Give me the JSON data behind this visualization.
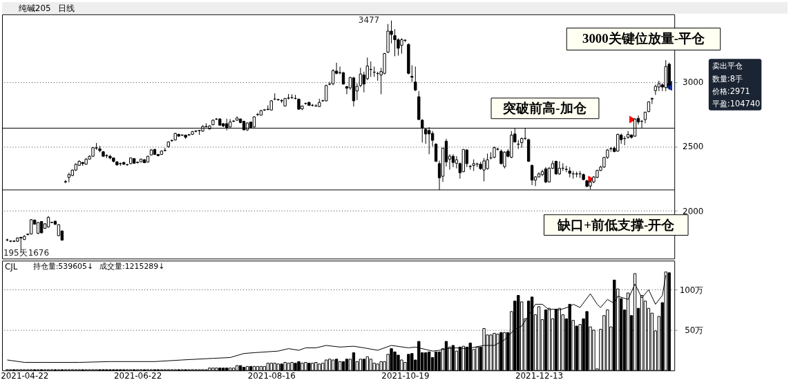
{
  "chart_data": [
    {
      "type": "candlestick",
      "title": "纯碱205",
      "subtitle": "日线",
      "color": "#000000",
      "categories": [
        null,
        null,
        null,
        null,
        null,
        "2021-04-22",
        null,
        null,
        null,
        null,
        null,
        null,
        null,
        null,
        null,
        null,
        null,
        null,
        null,
        null,
        null,
        null,
        null,
        null,
        null,
        null,
        null,
        null,
        null,
        null,
        null,
        null,
        null,
        null,
        null,
        null,
        null,
        null,
        "2021-06-22",
        null,
        null,
        null,
        null,
        null,
        null,
        null,
        null,
        null,
        null,
        null,
        null,
        null,
        null,
        null,
        null,
        null,
        null,
        null,
        null,
        null,
        null,
        null,
        null,
        null,
        null,
        null,
        null,
        null,
        null,
        null,
        null,
        null,
        null,
        null,
        null,
        null,
        null,
        "2021-08-16",
        null,
        null,
        null,
        null,
        null,
        null,
        null,
        null,
        null,
        null,
        null,
        null,
        null,
        null,
        null,
        null,
        null,
        null,
        null,
        null,
        null,
        null,
        null,
        null,
        null,
        null,
        null,
        null,
        null,
        null,
        null,
        null,
        null,
        null,
        null,
        null,
        null,
        null,
        "2021-10-19",
        null,
        null,
        null,
        null,
        null,
        null,
        null,
        null,
        null,
        null,
        null,
        null,
        null,
        null,
        null,
        null,
        null,
        null,
        null,
        null,
        null,
        null,
        null,
        null,
        null,
        null,
        null,
        null,
        null,
        null,
        null,
        null,
        null,
        null,
        null,
        null,
        null,
        null,
        "2021-12-13",
        null,
        null,
        null,
        null,
        null,
        null,
        null,
        null,
        null,
        null,
        null,
        null,
        null,
        null,
        null,
        null,
        null,
        null,
        null,
        null,
        null,
        null,
        null,
        null,
        null,
        null,
        null,
        null,
        null,
        null,
        null,
        null,
        null,
        null,
        null,
        null,
        null,
        null
      ],
      "ohlc": [
        [
          1775,
          1785,
          1765,
          1775
        ],
        [
          1765,
          1772,
          1758,
          1766
        ],
        [
          1766,
          1772,
          1758,
          1765
        ],
        [
          1765,
          1795,
          1760,
          1790
        ],
        [
          1790,
          1800,
          1676,
          1795
        ],
        [
          1778,
          1812,
          1775,
          1803
        ],
        [
          1817,
          1825,
          1810,
          1820
        ],
        [
          1821,
          1937,
          1818,
          1932
        ],
        [
          1929,
          1934,
          1895,
          1897
        ],
        [
          1826,
          1915,
          1820,
          1910
        ],
        [
          1918,
          1920,
          1826,
          1830
        ],
        [
          1865,
          1905,
          1860,
          1900
        ],
        [
          1876,
          1960,
          1870,
          1950
        ],
        [
          1910,
          1915,
          1905,
          1912
        ],
        [
          1920,
          1925,
          1890,
          1897
        ],
        [
          1808,
          1897,
          1805,
          1893
        ],
        [
          1844,
          1850,
          1770,
          1773
        ],
        [
          2225,
          2240,
          2215,
          2228
        ],
        [
          2260,
          2296,
          2222,
          2282
        ],
        [
          2275,
          2322,
          2270,
          2317
        ],
        [
          2317,
          2370,
          2310,
          2361
        ],
        [
          2354,
          2392,
          2350,
          2385
        ],
        [
          2376,
          2380,
          2350,
          2367
        ],
        [
          2363,
          2410,
          2358,
          2402
        ],
        [
          2402,
          2432,
          2398,
          2424
        ],
        [
          2424,
          2495,
          2420,
          2491
        ],
        [
          2487,
          2527,
          2475,
          2490
        ],
        [
          2482,
          2505,
          2455,
          2468
        ],
        [
          2459,
          2465,
          2420,
          2424
        ],
        [
          2430,
          2440,
          2410,
          2428
        ],
        [
          2424,
          2435,
          2400,
          2411
        ],
        [
          2411,
          2415,
          2375,
          2385
        ],
        [
          2381,
          2385,
          2350,
          2358
        ],
        [
          2368,
          2375,
          2350,
          2366
        ],
        [
          2376,
          2382,
          2355,
          2363
        ],
        [
          2358,
          2365,
          2350,
          2359
        ],
        [
          2367,
          2415,
          2362,
          2411
        ],
        [
          2406,
          2410,
          2365,
          2370
        ],
        [
          2375,
          2385,
          2368,
          2377
        ],
        [
          2381,
          2406,
          2376,
          2402
        ],
        [
          2397,
          2402,
          2370,
          2374
        ],
        [
          2379,
          2428,
          2375,
          2424
        ],
        [
          2434,
          2480,
          2430,
          2473
        ],
        [
          2477,
          2482,
          2434,
          2438
        ],
        [
          2438,
          2442,
          2424,
          2429
        ],
        [
          2438,
          2470,
          2434,
          2464
        ],
        [
          2468,
          2490,
          2462,
          2470
        ],
        [
          2500,
          2540,
          2490,
          2535
        ],
        [
          2544,
          2555,
          2538,
          2546
        ],
        [
          2551,
          2606,
          2546,
          2601
        ],
        [
          2594,
          2600,
          2575,
          2580
        ],
        [
          2588,
          2595,
          2580,
          2589
        ],
        [
          2588,
          2592,
          2560,
          2571
        ],
        [
          2590,
          2598,
          2582,
          2591
        ],
        [
          2594,
          2620,
          2590,
          2615
        ],
        [
          2618,
          2626,
          2610,
          2620
        ],
        [
          2623,
          2628,
          2590,
          2625
        ],
        [
          2619,
          2665,
          2615,
          2656
        ],
        [
          2654,
          2680,
          2648,
          2655
        ],
        [
          2636,
          2665,
          2632,
          2659
        ],
        [
          2668,
          2710,
          2665,
          2704
        ],
        [
          2712,
          2720,
          2705,
          2713
        ],
        [
          2713,
          2720,
          2660,
          2665
        ],
        [
          2677,
          2682,
          2650,
          2659
        ],
        [
          2677,
          2715,
          2625,
          2642
        ],
        [
          2651,
          2712,
          2648,
          2690
        ],
        [
          2695,
          2705,
          2690,
          2697
        ],
        [
          2704,
          2733,
          2700,
          2721
        ],
        [
          2713,
          2718,
          2680,
          2686
        ],
        [
          2695,
          2700,
          2625,
          2629
        ],
        [
          2629,
          2686,
          2620,
          2682
        ],
        [
          2690,
          2693,
          2643,
          2647
        ],
        [
          2651,
          2735,
          2648,
          2730
        ],
        [
          2748,
          2760,
          2735,
          2749
        ],
        [
          2743,
          2785,
          2740,
          2778
        ],
        [
          2783,
          2790,
          2776,
          2784
        ],
        [
          2787,
          2820,
          2780,
          2789
        ],
        [
          2783,
          2860,
          2780,
          2854
        ],
        [
          2867,
          2913,
          2860,
          2868
        ],
        [
          2863,
          2870,
          2855,
          2864
        ],
        [
          2856,
          2867,
          2837,
          2854
        ],
        [
          2814,
          2877,
          2810,
          2872
        ],
        [
          2875,
          2907,
          2865,
          2876
        ],
        [
          2878,
          2905,
          2870,
          2879
        ],
        [
          2873,
          2900,
          2865,
          2872
        ],
        [
          2867,
          2872,
          2785,
          2789
        ],
        [
          2792,
          2818,
          2782,
          2814
        ],
        [
          2833,
          2840,
          2825,
          2834
        ],
        [
          2842,
          2847,
          2815,
          2819
        ],
        [
          2819,
          2830,
          2810,
          2820
        ],
        [
          2814,
          2828,
          2808,
          2815
        ],
        [
          2810,
          2870,
          2806,
          2842
        ],
        [
          2854,
          2862,
          2848,
          2855
        ],
        [
          2854,
          2980,
          2850,
          2973
        ],
        [
          2983,
          3000,
          2975,
          2984
        ],
        [
          2987,
          3100,
          2975,
          3088
        ],
        [
          3085,
          3150,
          3060,
          3067
        ],
        [
          3072,
          3120,
          3060,
          3073
        ],
        [
          3072,
          3080,
          2980,
          2984
        ],
        [
          2964,
          2970,
          2905,
          2952
        ],
        [
          2955,
          3040,
          2940,
          3035
        ],
        [
          3032,
          3040,
          2810,
          2854
        ],
        [
          2931,
          2990,
          2860,
          2966
        ],
        [
          2973,
          3110,
          2960,
          3062
        ],
        [
          3055,
          3080,
          2920,
          2984
        ],
        [
          3026,
          3190,
          3015,
          3124
        ],
        [
          3097,
          3160,
          3040,
          3098
        ],
        [
          3076,
          3120,
          3040,
          3077
        ],
        [
          3065,
          3080,
          3010,
          3066
        ],
        [
          3055,
          3110,
          2905,
          3081
        ],
        [
          3067,
          3226,
          3060,
          3221
        ],
        [
          3232,
          3450,
          3225,
          3395
        ],
        [
          3395,
          3477,
          3300,
          3369
        ],
        [
          3360,
          3410,
          3200,
          3328
        ],
        [
          3328,
          3340,
          3205,
          3262
        ],
        [
          3285,
          3340,
          3220,
          3328
        ],
        [
          3323,
          3330,
          3310,
          3325
        ],
        [
          3292,
          3300,
          3060,
          3067
        ],
        [
          3044,
          3130,
          3000,
          3037
        ],
        [
          3000,
          3120,
          2930,
          2938
        ],
        [
          2886,
          2930,
          2705,
          2709
        ],
        [
          2704,
          2712,
          2530,
          2642
        ],
        [
          2633,
          2640,
          2520,
          2597
        ],
        [
          2624,
          2650,
          2440,
          2597
        ],
        [
          2601,
          2620,
          2500,
          2548
        ],
        [
          2518,
          2525,
          2380,
          2385
        ],
        [
          2367,
          2390,
          2163,
          2257
        ],
        [
          2269,
          2490,
          2225,
          2487
        ],
        [
          2541,
          2560,
          2345,
          2381
        ],
        [
          2402,
          2440,
          2320,
          2425
        ],
        [
          2424,
          2440,
          2340,
          2376
        ],
        [
          2370,
          2425,
          2330,
          2397
        ],
        [
          2367,
          2376,
          2250,
          2296
        ],
        [
          2305,
          2480,
          2300,
          2477
        ],
        [
          2473,
          2478,
          2340,
          2367
        ],
        [
          2346,
          2355,
          2320,
          2345
        ],
        [
          2353,
          2400,
          2310,
          2367
        ],
        [
          2363,
          2375,
          2340,
          2364
        ],
        [
          2363,
          2380,
          2320,
          2328
        ],
        [
          2317,
          2410,
          2230,
          2388
        ],
        [
          2328,
          2445,
          2320,
          2397
        ],
        [
          2411,
          2455,
          2400,
          2412
        ],
        [
          2416,
          2500,
          2410,
          2491
        ],
        [
          2478,
          2490,
          2470,
          2479
        ],
        [
          2463,
          2477,
          2360,
          2367
        ],
        [
          2344,
          2462,
          2330,
          2456
        ],
        [
          2463,
          2480,
          2415,
          2424
        ],
        [
          2416,
          2620,
          2410,
          2588
        ],
        [
          2597,
          2640,
          2530,
          2535
        ],
        [
          2518,
          2550,
          2480,
          2517
        ],
        [
          2530,
          2570,
          2490,
          2562
        ],
        [
          2562,
          2640,
          2550,
          2563
        ],
        [
          2553,
          2560,
          2380,
          2385
        ],
        [
          2353,
          2360,
          2200,
          2239
        ],
        [
          2239,
          2270,
          2193,
          2264
        ],
        [
          2264,
          2300,
          2260,
          2287
        ],
        [
          2282,
          2320,
          2270,
          2305
        ],
        [
          2326,
          2340,
          2215,
          2225
        ],
        [
          2225,
          2340,
          2220,
          2331
        ],
        [
          2331,
          2390,
          2325,
          2367
        ],
        [
          2385,
          2390,
          2280,
          2287
        ],
        [
          2287,
          2385,
          2280,
          2331
        ],
        [
          2331,
          2370,
          2310,
          2332
        ],
        [
          2323,
          2350,
          2300,
          2322
        ],
        [
          2310,
          2340,
          2260,
          2292
        ],
        [
          2287,
          2310,
          2250,
          2288
        ],
        [
          2287,
          2305,
          2260,
          2286
        ],
        [
          2287,
          2310,
          2255,
          2288
        ],
        [
          2282,
          2290,
          2238,
          2243
        ],
        [
          2234,
          2240,
          2185,
          2190
        ],
        [
          2193,
          2232,
          2167,
          2225
        ],
        [
          2225,
          2270,
          2215,
          2264
        ],
        [
          2260,
          2320,
          2255,
          2314
        ],
        [
          2314,
          2350,
          2310,
          2340
        ],
        [
          2340,
          2420,
          2335,
          2415
        ],
        [
          2415,
          2480,
          2405,
          2473
        ],
        [
          2482,
          2495,
          2460,
          2484
        ],
        [
          2487,
          2500,
          2455,
          2461
        ],
        [
          2464,
          2600,
          2460,
          2594
        ],
        [
          2588,
          2600,
          2520,
          2553
        ],
        [
          2562,
          2580,
          2510,
          2561
        ],
        [
          2571,
          2620,
          2560,
          2594
        ],
        [
          2588,
          2595,
          2560,
          2571
        ],
        [
          2580,
          2720,
          2575,
          2713
        ],
        [
          2718,
          2740,
          2670,
          2690
        ],
        [
          2695,
          2705,
          2640,
          2696
        ],
        [
          2709,
          2770,
          2680,
          2766
        ],
        [
          2771,
          2850,
          2765,
          2846
        ],
        [
          2868,
          2880,
          2830,
          2872
        ],
        [
          2934,
          2980,
          2900,
          2966
        ],
        [
          2961,
          3010,
          2930,
          2987
        ],
        [
          2978,
          2990,
          2930,
          2961
        ],
        [
          2957,
          3170,
          2930,
          3120
        ],
        [
          3138,
          3150,
          2940,
          2975
        ]
      ],
      "series": [
        {
          "type": "scatter",
          "marker": "triangle",
          "color": "#ff0000",
          "values": [
            null,
            null,
            null,
            null,
            null,
            null,
            null,
            null,
            null,
            null,
            null,
            null,
            null,
            null,
            null,
            null,
            null,
            null,
            null,
            null,
            null,
            null,
            null,
            null,
            null,
            null,
            null,
            null,
            null,
            null,
            null,
            null,
            null,
            null,
            null,
            null,
            null,
            null,
            null,
            null,
            null,
            null,
            null,
            null,
            null,
            null,
            null,
            null,
            null,
            null,
            null,
            null,
            null,
            null,
            null,
            null,
            null,
            null,
            null,
            null,
            null,
            null,
            null,
            null,
            null,
            null,
            null,
            null,
            null,
            null,
            null,
            null,
            null,
            null,
            null,
            null,
            null,
            null,
            null,
            null,
            null,
            null,
            null,
            null,
            null,
            null,
            null,
            null,
            null,
            null,
            null,
            null,
            null,
            null,
            null,
            null,
            null,
            null,
            null,
            null,
            null,
            null,
            null,
            null,
            null,
            null,
            null,
            null,
            null,
            null,
            null,
            null,
            null,
            null,
            null,
            null,
            null,
            null,
            null,
            null,
            null,
            null,
            null,
            null,
            null,
            null,
            null,
            null,
            null,
            null,
            null,
            null,
            null,
            null,
            null,
            null,
            null,
            null,
            null,
            null,
            null,
            null,
            null,
            null,
            null,
            null,
            null,
            null,
            null,
            null,
            null,
            null,
            null,
            null,
            null,
            null,
            null,
            null,
            null,
            null,
            null,
            null,
            null,
            null,
            null,
            null,
            null,
            null,
            null,
            null,
            2245,
            null,
            null,
            null,
            null,
            null,
            null,
            null,
            null,
            null,
            null,
            null,
            2709,
            null,
            null,
            null,
            null,
            null,
            null,
            null,
            null,
            null,
            null,
            null
          ]
        },
        {
          "type": "scatter",
          "marker": "triangle",
          "color": "#1030a0",
          "values": [
            null,
            null,
            null,
            null,
            null,
            null,
            null,
            null,
            null,
            null,
            null,
            null,
            null,
            null,
            null,
            null,
            null,
            null,
            null,
            null,
            null,
            null,
            null,
            null,
            null,
            null,
            null,
            null,
            null,
            null,
            null,
            null,
            null,
            null,
            null,
            null,
            null,
            null,
            null,
            null,
            null,
            null,
            null,
            null,
            null,
            null,
            null,
            null,
            null,
            null,
            null,
            null,
            null,
            null,
            null,
            null,
            null,
            null,
            null,
            null,
            null,
            null,
            null,
            null,
            null,
            null,
            null,
            null,
            null,
            null,
            null,
            null,
            null,
            null,
            null,
            null,
            null,
            null,
            null,
            null,
            null,
            null,
            null,
            null,
            null,
            null,
            null,
            null,
            null,
            null,
            null,
            null,
            null,
            null,
            null,
            null,
            null,
            null,
            null,
            null,
            null,
            null,
            null,
            null,
            null,
            null,
            null,
            null,
            null,
            null,
            null,
            null,
            null,
            null,
            null,
            null,
            null,
            null,
            null,
            null,
            null,
            null,
            null,
            null,
            null,
            null,
            null,
            null,
            null,
            null,
            null,
            null,
            null,
            null,
            null,
            null,
            null,
            null,
            null,
            null,
            null,
            null,
            null,
            null,
            null,
            null,
            null,
            null,
            null,
            null,
            null,
            null,
            null,
            null,
            null,
            null,
            null,
            null,
            null,
            null,
            null,
            null,
            null,
            null,
            null,
            null,
            null,
            null,
            null,
            null,
            null,
            null,
            null,
            null,
            null,
            null,
            null,
            null,
            null,
            null,
            null,
            null,
            null,
            null,
            null,
            null,
            null,
            null,
            null,
            null,
            null,
            null,
            null,
            2971
          ]
        }
      ],
      "ylim": [
        1630,
        3525
      ],
      "yticks": [
        2000,
        2500,
        3000
      ],
      "grid": "y",
      "tick_labels": "y",
      "ref_lines": [
        {
          "axis": "y",
          "value": 2163,
          "label": null,
          "color": "#000000"
        },
        {
          "axis": "y",
          "value": 2642,
          "label": null,
          "color": "#000000"
        }
      ],
      "annotations": [
        "3477",
        "195天",
        "1676",
        "3000关键位放量-平仓",
        "突破前高-加仓",
        "缺口+前低支撑-开仓",
        "卖出平仓",
        "数量:8手",
        "价格:2971",
        "平盈:104740"
      ]
    },
    {
      "type": "bar",
      "title": "CJL",
      "categories": [
        null,
        null,
        null,
        null,
        null,
        "2021-04-22",
        null,
        null,
        null,
        null,
        null,
        null,
        null,
        null,
        null,
        null,
        null,
        null,
        null,
        null,
        null,
        null,
        null,
        null,
        null,
        null,
        null,
        null,
        null,
        null,
        null,
        null,
        null,
        null,
        null,
        null,
        null,
        null,
        "2021-06-22",
        null,
        null,
        null,
        null,
        null,
        null,
        null,
        null,
        null,
        null,
        null,
        null,
        null,
        null,
        null,
        null,
        null,
        null,
        null,
        null,
        null,
        null,
        null,
        null,
        null,
        null,
        null,
        null,
        null,
        null,
        null,
        null,
        null,
        null,
        null,
        null,
        null,
        null,
        "2021-08-16",
        null,
        null,
        null,
        null,
        null,
        null,
        null,
        null,
        null,
        null,
        null,
        null,
        null,
        null,
        null,
        null,
        null,
        null,
        null,
        null,
        null,
        null,
        null,
        null,
        null,
        null,
        null,
        null,
        null,
        null,
        null,
        null,
        null,
        null,
        null,
        null,
        null,
        null,
        "2021-10-19",
        null,
        null,
        null,
        null,
        null,
        null,
        null,
        null,
        null,
        null,
        null,
        null,
        null,
        null,
        null,
        null,
        null,
        null,
        null,
        null,
        null,
        null,
        null,
        null,
        null,
        null,
        null,
        null,
        null,
        null,
        null,
        null,
        null,
        null,
        null,
        null,
        null,
        null,
        "2021-12-13",
        null,
        null,
        null,
        null,
        null,
        null,
        null,
        null,
        null,
        null,
        null,
        null,
        null,
        null,
        null,
        null,
        null,
        null,
        null,
        null,
        null,
        null,
        null,
        null,
        null,
        null,
        null,
        null,
        null,
        null,
        null,
        null,
        null,
        null,
        null,
        null,
        null,
        null
      ],
      "series": [
        {
          "type": "bar",
          "color": "#000000",
          "values": [
            1,
            1,
            1,
            1,
            1,
            1,
            1,
            1,
            1,
            1,
            1,
            1,
            1,
            1,
            1,
            1,
            1,
            1,
            1,
            1,
            1,
            1,
            1,
            1,
            1,
            1,
            1,
            1,
            1,
            1,
            1,
            1,
            1,
            1,
            1,
            1,
            1,
            1,
            1,
            1,
            1,
            1,
            1,
            1,
            1,
            1,
            1,
            1,
            1,
            1,
            1,
            1,
            1,
            1,
            1,
            1,
            1,
            1,
            1,
            3,
            3,
            3,
            3,
            3,
            3,
            3,
            3,
            6,
            6,
            4,
            5,
            5,
            5,
            5,
            5,
            5,
            9,
            9,
            9,
            8,
            8,
            10,
            9,
            10,
            9,
            11,
            9,
            10,
            9,
            9,
            10,
            8,
            9,
            13,
            14,
            13,
            14,
            11,
            11,
            14,
            14,
            22,
            11,
            14,
            14,
            17,
            14,
            9,
            8,
            11,
            11,
            20,
            27,
            23,
            19,
            13,
            10,
            20,
            21,
            13,
            36,
            22,
            22,
            23,
            16,
            23,
            23,
            27,
            36,
            29,
            31,
            24,
            29,
            30,
            29,
            34,
            26,
            29,
            29,
            52,
            44,
            44,
            46,
            45,
            47,
            47,
            47,
            73,
            86,
            93,
            85,
            64,
            86,
            91,
            69,
            79,
            63,
            75,
            77,
            64,
            76,
            77,
            69,
            64,
            82,
            62,
            55,
            57,
            64,
            73,
            54,
            50,
            2,
            51,
            68,
            75,
            54,
            112,
            101,
            89,
            75,
            96,
            68,
            120,
            77,
            93,
            86,
            77,
            71,
            49,
            67,
            84,
            122,
            121
          ]
        },
        {
          "type": "line",
          "color": "#000000",
          "values": [
            13,
            null,
            null,
            null,
            null,
            10,
            null,
            null,
            null,
            null,
            null,
            10,
            null,
            null,
            null,
            null,
            null,
            null,
            null,
            null,
            null,
            10,
            null,
            null,
            null,
            null,
            null,
            null,
            null,
            null,
            11,
            null,
            null,
            null,
            null,
            null,
            null,
            null,
            null,
            null,
            null,
            null,
            null,
            11,
            null,
            null,
            null,
            null,
            null,
            null,
            null,
            13,
            null,
            null,
            null,
            null,
            null,
            null,
            null,
            null,
            15,
            null,
            null,
            null,
            null,
            16,
            null,
            null,
            null,
            21,
            null,
            null,
            22,
            null,
            null,
            null,
            null,
            null,
            null,
            24,
            null,
            null,
            27,
            null,
            null,
            25,
            null,
            28,
            null,
            null,
            28,
            null,
            null,
            31,
            null,
            null,
            null,
            29,
            null,
            null,
            null,
            30,
            null,
            null,
            28,
            null,
            null,
            null,
            25,
            null,
            null,
            null,
            31,
            null,
            null,
            null,
            null,
            28,
            null,
            29,
            null,
            null,
            26,
            null,
            24,
            null,
            25,
            null,
            27,
            null,
            null,
            28,
            null,
            null,
            27,
            null,
            null,
            null,
            null,
            31,
            null,
            null,
            31,
            null,
            null,
            38,
            null,
            null,
            51,
            null,
            55,
            null,
            68,
            null,
            82,
            null,
            82,
            null,
            75,
            76,
            null,
            75,
            null,
            null,
            79,
            82,
            null,
            78,
            null,
            null,
            95,
            null,
            82,
            78,
            null,
            88,
            null,
            83,
            92,
            null,
            null,
            88,
            null,
            107,
            null,
            90,
            null,
            100,
            null,
            82,
            null,
            93,
            118,
            null
          ]
        }
      ],
      "annotations": [
        "持仓量:539605↓",
        "成交量:1215289↓"
      ],
      "ylim": [
        0,
        136
      ],
      "yticks": [
        {
          "value": 50,
          "label": "50万"
        },
        {
          "value": 100,
          "label": "100万"
        }
      ],
      "grid": "y"
    }
  ]
}
